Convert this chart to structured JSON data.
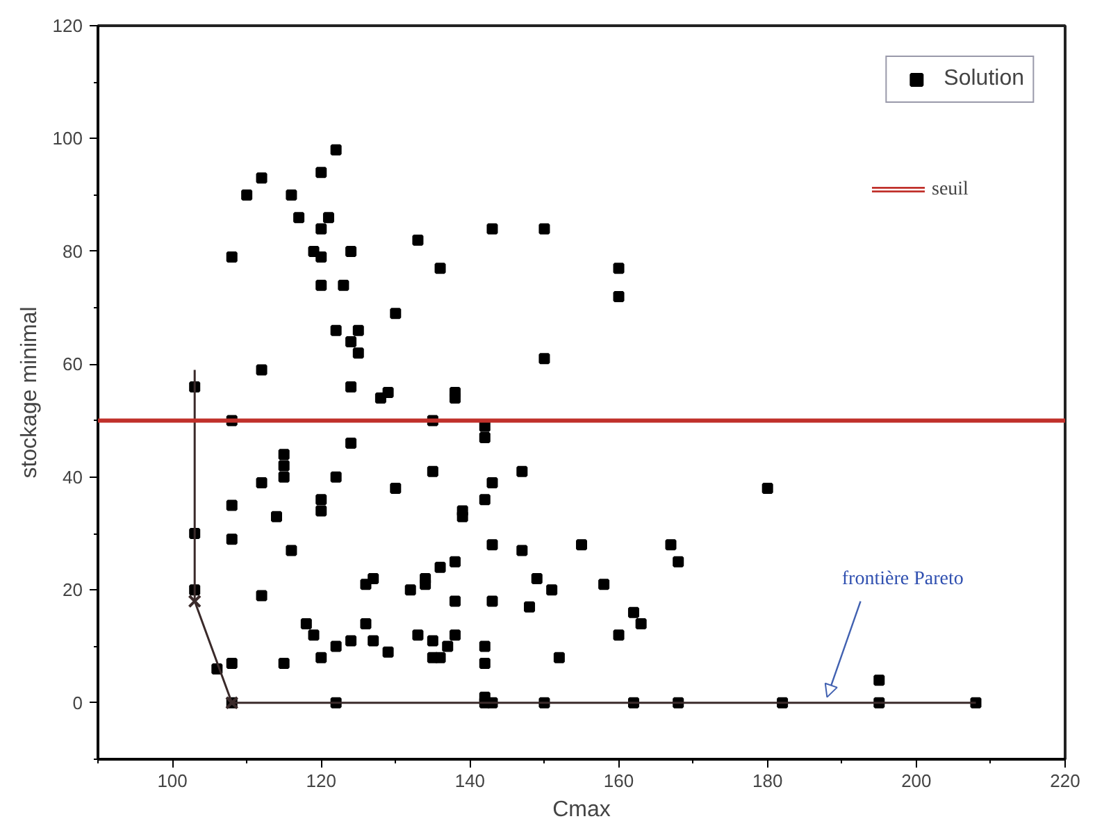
{
  "chart_data": {
    "type": "scatter",
    "xlabel": "Cmax",
    "ylabel": "stockage minimal",
    "xlim": [
      90,
      220
    ],
    "xticks": [
      100,
      120,
      140,
      160,
      180,
      200,
      220
    ],
    "ylim": [
      -10,
      120
    ],
    "yticks": [
      0,
      20,
      40,
      60,
      80,
      100,
      120
    ],
    "grid": false,
    "legend": "top right",
    "series": [
      {
        "name": "Solution",
        "color": "#000000",
        "marker": "square",
        "x": [
          103,
          103,
          103,
          108,
          108,
          108,
          108,
          108,
          108,
          106,
          110,
          112,
          112,
          112,
          112,
          114,
          115,
          115,
          115,
          115,
          116,
          116,
          117,
          118,
          119,
          119,
          120,
          120,
          120,
          120,
          120,
          120,
          120,
          121,
          122,
          122,
          122,
          122,
          122,
          123,
          124,
          124,
          124,
          124,
          124,
          125,
          125,
          126,
          126,
          127,
          127,
          128,
          129,
          129,
          130,
          130,
          132,
          133,
          133,
          134,
          134,
          135,
          135,
          135,
          135,
          136,
          136,
          136,
          137,
          138,
          138,
          138,
          138,
          138,
          139,
          139,
          142,
          142,
          142,
          142,
          142,
          142,
          142,
          143,
          143,
          143,
          143,
          143,
          147,
          147,
          148,
          149,
          150,
          150,
          150,
          151,
          152,
          155,
          158,
          160,
          160,
          160,
          162,
          162,
          163,
          167,
          168,
          168,
          180,
          182,
          195,
          195,
          208
        ],
        "values": [
          56,
          30,
          20,
          79,
          50,
          35,
          29,
          7,
          0,
          6,
          90,
          93,
          59,
          39,
          19,
          33,
          44,
          42,
          40,
          7,
          90,
          27,
          86,
          14,
          80,
          12,
          94,
          79,
          84,
          74,
          36,
          34,
          8,
          86,
          98,
          66,
          40,
          10,
          0,
          74,
          80,
          64,
          56,
          46,
          11,
          66,
          62,
          21,
          14,
          22,
          11,
          54,
          55,
          9,
          69,
          38,
          20,
          82,
          12,
          21,
          22,
          50,
          41,
          11,
          8,
          77,
          24,
          8,
          10,
          55,
          54,
          25,
          18,
          12,
          34,
          33,
          49,
          47,
          36,
          10,
          7,
          1,
          0,
          84,
          39,
          28,
          18,
          0,
          41,
          27,
          17,
          22,
          84,
          61,
          0,
          20,
          8,
          28,
          21,
          77,
          72,
          12,
          16,
          0,
          14,
          28,
          25,
          0,
          38,
          0,
          4,
          0,
          0
        ]
      },
      {
        "color": "#3a2a2a",
        "type": "line",
        "marker": "none",
        "x": [
          103,
          103,
          108,
          208
        ],
        "values": [
          59,
          18,
          0,
          0
        ]
      },
      {
        "color": "#3a2a2a",
        "type": "scatter",
        "marker": "cross",
        "x": [
          103,
          108
        ],
        "values": [
          18,
          0
        ]
      }
    ],
    "ref_lines": [
      {
        "axis": "y",
        "value": 50,
        "label": "seuil",
        "color": "#c0302a"
      }
    ],
    "annotations": [
      {
        "text": "frontière Pareto",
        "x": 188,
        "y": 1
      }
    ]
  }
}
